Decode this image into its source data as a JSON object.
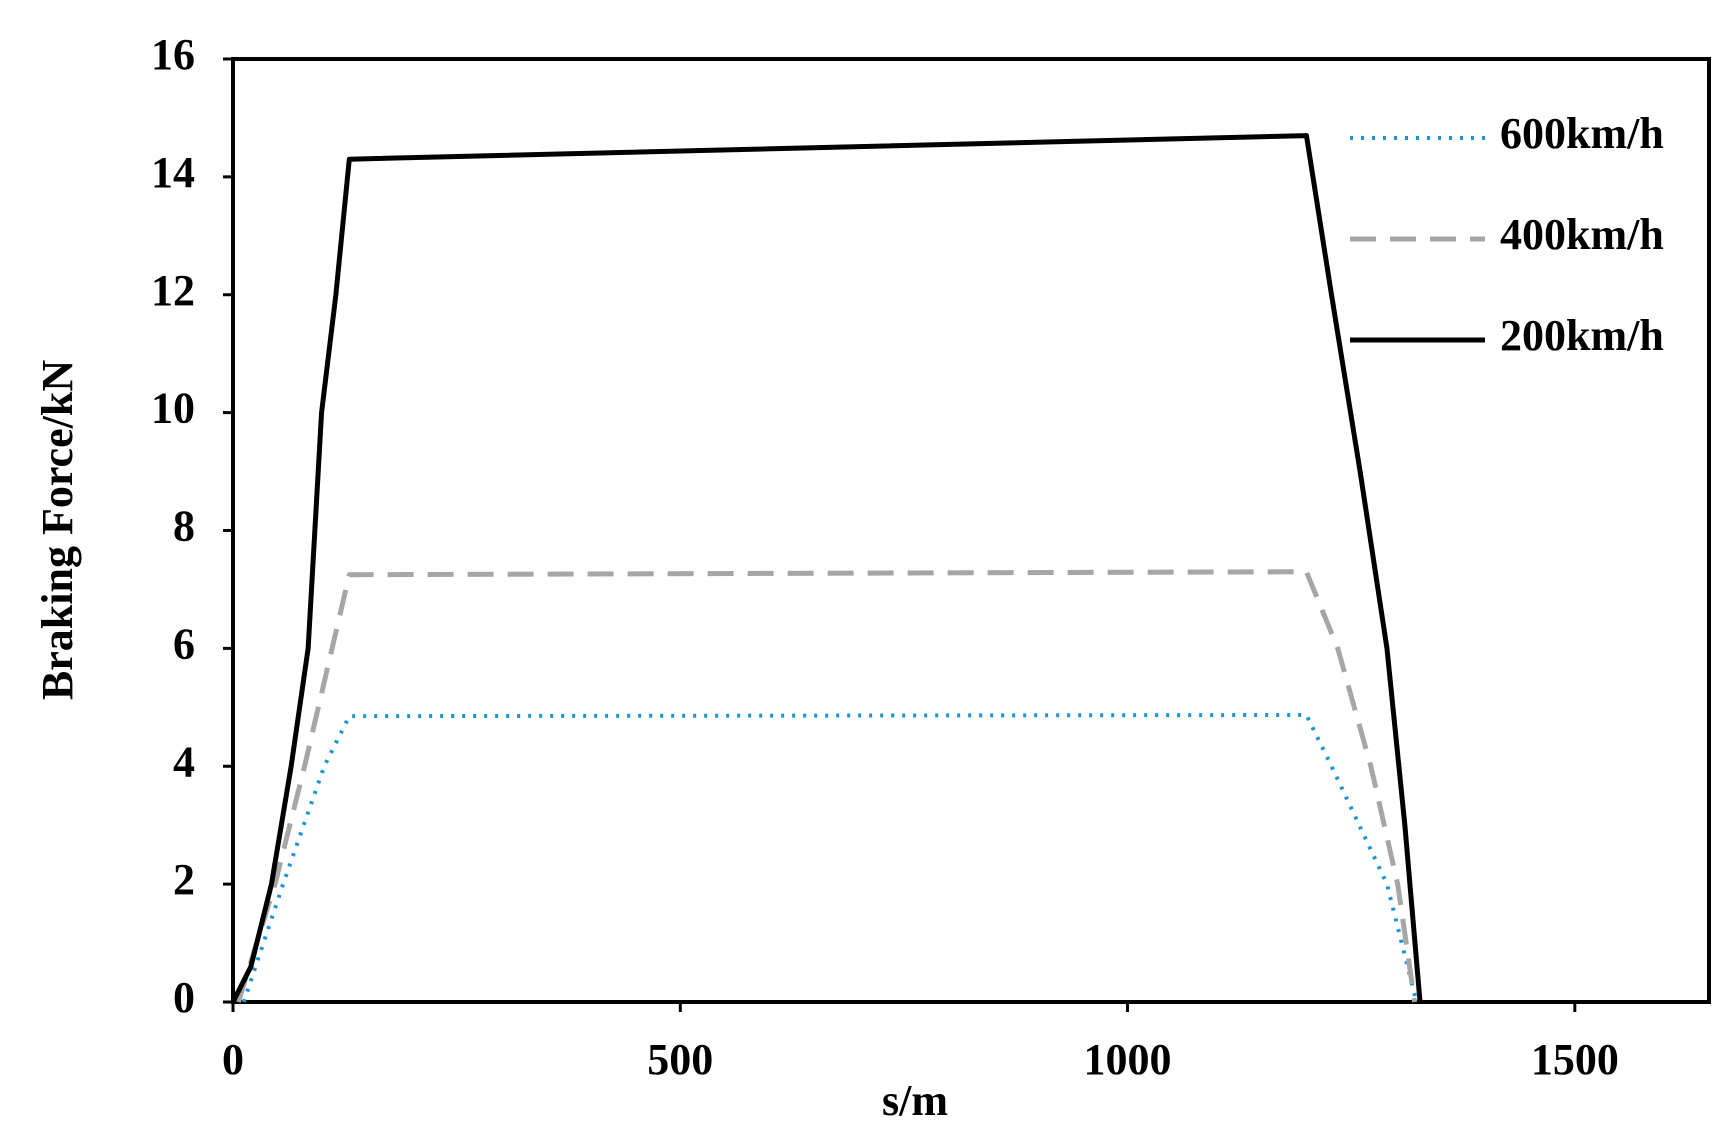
{
  "chart_data": {
    "type": "line",
    "x_label": "s/m",
    "y_label": "Braking Force/kN",
    "xlim": [
      0,
      1650
    ],
    "ylim": [
      0,
      16
    ],
    "xticks": [
      0,
      500,
      1000,
      1500
    ],
    "yticks": [
      0,
      2,
      4,
      6,
      8,
      10,
      12,
      14,
      16
    ],
    "legend": "upper-right",
    "series": [
      {
        "name": "600km/h",
        "color": "#1a96d8",
        "dash": "dotted",
        "x": [
          12,
          56,
          102,
          130,
          1200,
          1228,
          1290,
          1323
        ],
        "values": [
          0,
          2,
          4,
          4.85,
          4.87,
          4,
          2,
          0
        ]
      },
      {
        "name": "400km/h",
        "color": "#a6a6a6",
        "dash": "dashed",
        "x": [
          6,
          47,
          80,
          130,
          1200,
          1235,
          1272,
          1302,
          1321
        ],
        "values": [
          0,
          2,
          4,
          7.25,
          7.3,
          6,
          4,
          2,
          0
        ]
      },
      {
        "name": "200km/h",
        "color": "#000000",
        "dash": "solid",
        "x": [
          0,
          20,
          43,
          65,
          84,
          99,
          115,
          130,
          1200,
          1228,
          1260,
          1290,
          1310,
          1327
        ],
        "values": [
          0,
          0.6,
          2,
          4,
          6,
          10,
          12,
          14.3,
          14.7,
          12,
          9,
          6,
          3,
          0
        ]
      }
    ]
  }
}
